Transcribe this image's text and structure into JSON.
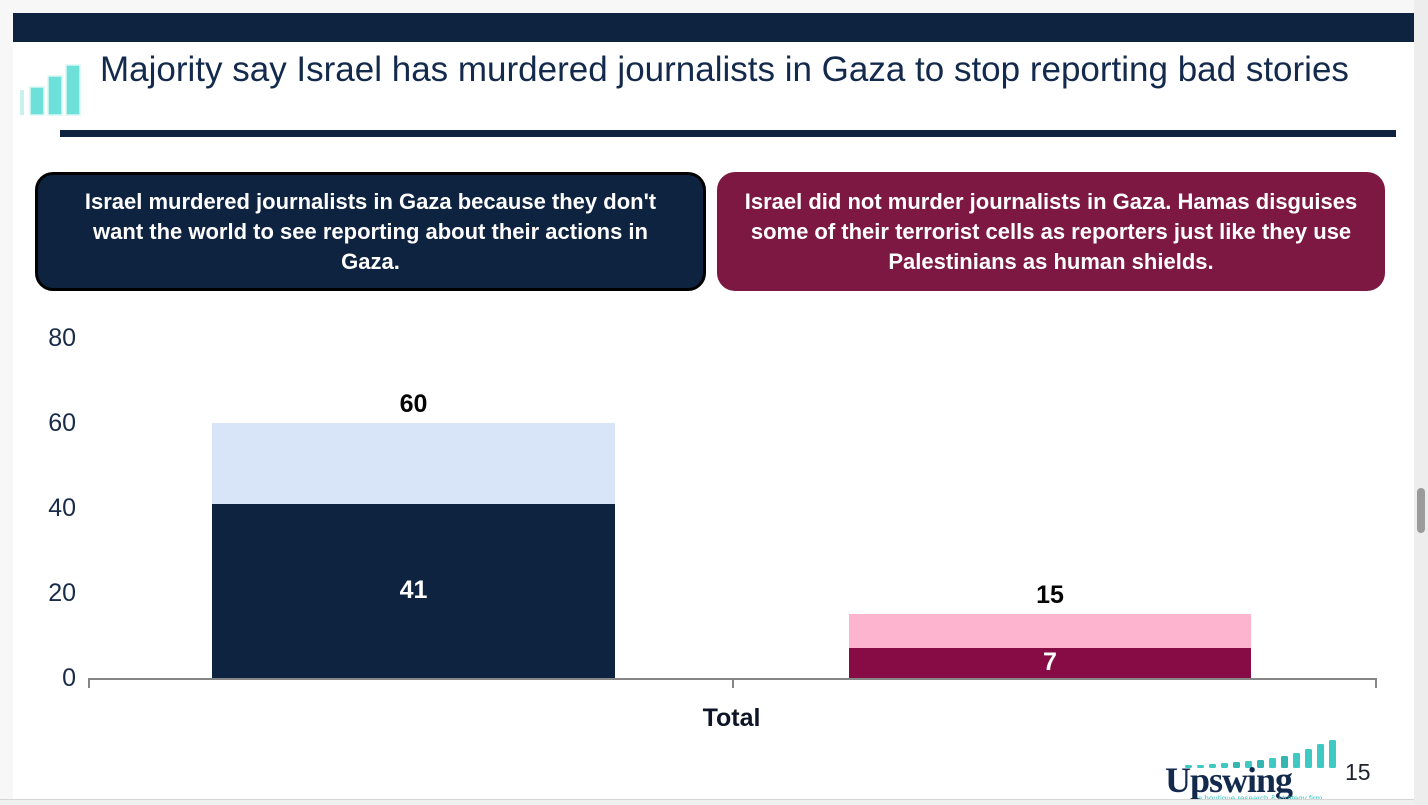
{
  "header": {
    "title": "Majority say Israel has murdered journalists in Gaza to stop reporting bad stories"
  },
  "callouts": {
    "left": {
      "text": "Israel murdered journalists in Gaza because they don't want the world to see reporting about their actions in Gaza.",
      "bg": "#0e2340"
    },
    "right": {
      "text": "Israel did not murder journalists in Gaza. Hamas disguises some of their terrorist cells as reporters just like they use Palestinians as human shields.",
      "bg": "#7d1843"
    }
  },
  "chart_data": {
    "type": "bar",
    "subtype": "stacked-clustered",
    "categories": [
      "Total"
    ],
    "xlabel": "Total",
    "ylim": [
      0,
      80
    ],
    "yticks": [
      0,
      20,
      40,
      60,
      80
    ],
    "grid": false,
    "legend": "none",
    "groups": [
      {
        "name": "israel-murdered-journalists-statement",
        "total": 60,
        "strong": 41,
        "total_color": "#d8e5f8",
        "strong_color": "#0e2340"
      },
      {
        "name": "israel-did-not-murder-statement",
        "total": 15,
        "strong": 7,
        "total_color": "#fcb4cf",
        "strong_color": "#870c45"
      }
    ]
  },
  "logo": {
    "brand": "Upswing",
    "tagline": "a boutique research & strategy firm"
  },
  "page": {
    "number": "15"
  },
  "colors": {
    "navy": "#0e2340",
    "maroon": "#7d1843",
    "light_blue": "#d8e5f8",
    "pink": "#fcb4cf",
    "teal": "#3fc9c3",
    "axis_gray": "#868686"
  }
}
